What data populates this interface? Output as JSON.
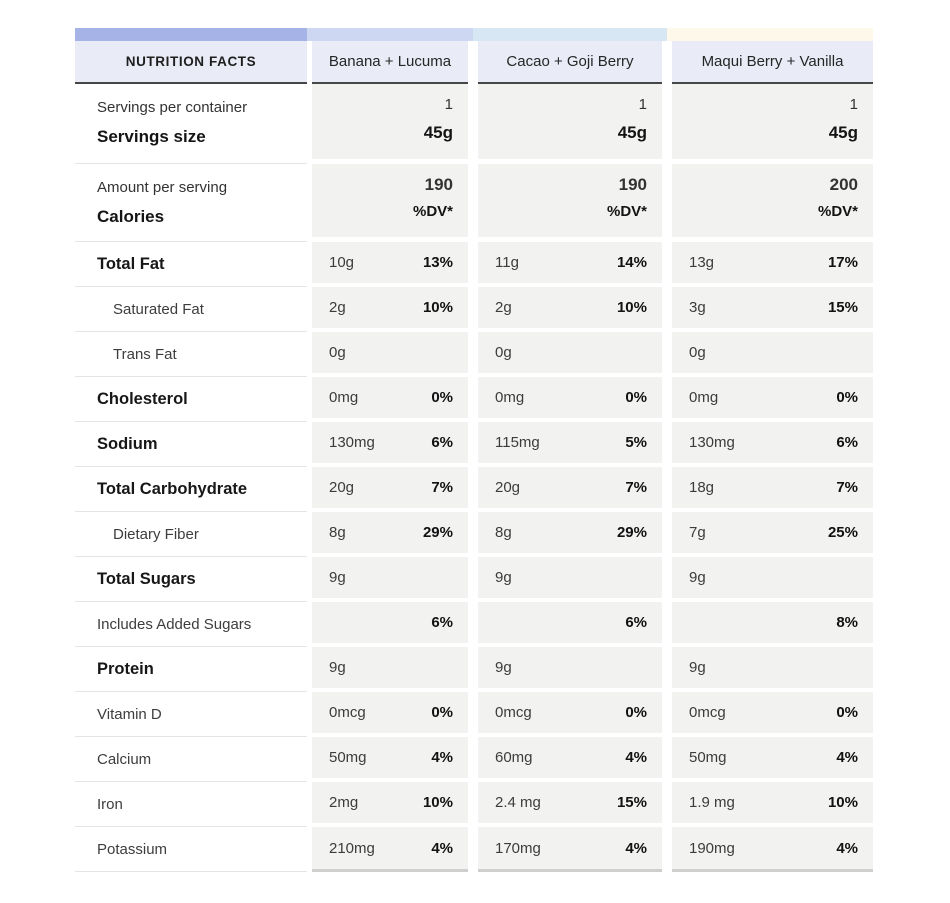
{
  "header": {
    "title": "NUTRITION FACTS",
    "columns": [
      {
        "name": "Banana + Lucuma"
      },
      {
        "name": "Cacao + Goji Berry"
      },
      {
        "name": "Maqui Berry + Vanilla"
      }
    ]
  },
  "strip_colors": [
    "#a5b3e7",
    "#ced7f1",
    "#d7e7f4",
    "#fdf8ea"
  ],
  "colors": {
    "header_bg": "#e9ecf7",
    "header_border": "#474747",
    "cell_bg": "#f2f2f1",
    "row_separator": "#e4e4e4",
    "bottom_bar": "#cfcfcf"
  },
  "servings": {
    "label_top": "Servings per container",
    "label_bottom": "Servings size",
    "values": [
      {
        "per_container": "1",
        "size": "45g"
      },
      {
        "per_container": "1",
        "size": "45g"
      },
      {
        "per_container": "1",
        "size": "45g"
      }
    ]
  },
  "calories": {
    "label_top": "Amount per serving",
    "label_bottom": "Calories",
    "values": [
      {
        "calories": "190",
        "dv_header": "%DV*"
      },
      {
        "calories": "190",
        "dv_header": "%DV*"
      },
      {
        "calories": "200",
        "dv_header": "%DV*"
      }
    ]
  },
  "rows": [
    {
      "label": "Total Fat",
      "style": "bold",
      "values": [
        {
          "amount": "10g",
          "dv": "13%"
        },
        {
          "amount": "11g",
          "dv": "14%"
        },
        {
          "amount": "13g",
          "dv": "17%"
        }
      ]
    },
    {
      "label": "Saturated Fat",
      "style": "indent",
      "values": [
        {
          "amount": "2g",
          "dv": "10%"
        },
        {
          "amount": "2g",
          "dv": "10%"
        },
        {
          "amount": "3g",
          "dv": "15%"
        }
      ]
    },
    {
      "label": "Trans Fat",
      "style": "indent",
      "values": [
        {
          "amount": "0g",
          "dv": ""
        },
        {
          "amount": "0g",
          "dv": ""
        },
        {
          "amount": "0g",
          "dv": ""
        }
      ]
    },
    {
      "label": "Cholesterol",
      "style": "bold",
      "values": [
        {
          "amount": "0mg",
          "dv": "0%"
        },
        {
          "amount": "0mg",
          "dv": "0%"
        },
        {
          "amount": "0mg",
          "dv": "0%"
        }
      ]
    },
    {
      "label": "Sodium",
      "style": "bold",
      "values": [
        {
          "amount": "130mg",
          "dv": "6%"
        },
        {
          "amount": "115mg",
          "dv": "5%"
        },
        {
          "amount": "130mg",
          "dv": "6%"
        }
      ]
    },
    {
      "label": "Total Carbohydrate",
      "style": "bold",
      "values": [
        {
          "amount": "20g",
          "dv": "7%"
        },
        {
          "amount": "20g",
          "dv": "7%"
        },
        {
          "amount": "18g",
          "dv": "7%"
        }
      ]
    },
    {
      "label": "Dietary Fiber",
      "style": "indent",
      "values": [
        {
          "amount": "8g",
          "dv": "29%"
        },
        {
          "amount": "8g",
          "dv": "29%"
        },
        {
          "amount": "7g",
          "dv": "25%"
        }
      ]
    },
    {
      "label": "Total Sugars",
      "style": "bold",
      "values": [
        {
          "amount": "9g",
          "dv": ""
        },
        {
          "amount": "9g",
          "dv": ""
        },
        {
          "amount": "9g",
          "dv": ""
        }
      ]
    },
    {
      "label": "Includes Added Sugars",
      "style": "plain",
      "values": [
        {
          "amount": "",
          "dv": "6%"
        },
        {
          "amount": "",
          "dv": "6%"
        },
        {
          "amount": "",
          "dv": "8%"
        }
      ]
    },
    {
      "label": "Protein",
      "style": "bold",
      "values": [
        {
          "amount": "9g",
          "dv": ""
        },
        {
          "amount": "9g",
          "dv": ""
        },
        {
          "amount": "9g",
          "dv": ""
        }
      ]
    },
    {
      "label": "Vitamin D",
      "style": "plain",
      "values": [
        {
          "amount": "0mcg",
          "dv": "0%"
        },
        {
          "amount": "0mcg",
          "dv": "0%"
        },
        {
          "amount": "0mcg",
          "dv": "0%"
        }
      ]
    },
    {
      "label": "Calcium",
      "style": "plain",
      "values": [
        {
          "amount": "50mg",
          "dv": "4%"
        },
        {
          "amount": "60mg",
          "dv": "4%"
        },
        {
          "amount": "50mg",
          "dv": "4%"
        }
      ]
    },
    {
      "label": "Iron",
      "style": "plain",
      "values": [
        {
          "amount": "2mg",
          "dv": "10%"
        },
        {
          "amount": "2.4 mg",
          "dv": "15%"
        },
        {
          "amount": "1.9 mg",
          "dv": "10%"
        }
      ]
    },
    {
      "label": "Potassium",
      "style": "plain",
      "values": [
        {
          "amount": "210mg",
          "dv": "4%"
        },
        {
          "amount": "170mg",
          "dv": "4%"
        },
        {
          "amount": "190mg",
          "dv": "4%"
        }
      ]
    }
  ]
}
